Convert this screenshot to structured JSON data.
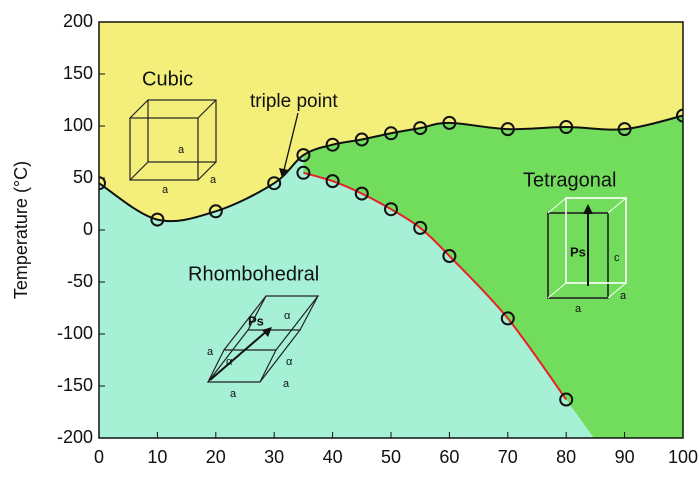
{
  "chart_data": {
    "type": "line",
    "y_label": "Temperature (°C)",
    "xlim": [
      0,
      100
    ],
    "ylim": [
      -200,
      200
    ],
    "xticks": [
      0,
      10,
      20,
      30,
      40,
      50,
      60,
      70,
      80,
      90,
      100
    ],
    "yticks": [
      -200,
      -150,
      -100,
      -50,
      0,
      50,
      100,
      150,
      200
    ],
    "series": [
      {
        "color": "#111111",
        "x": [
          0,
          10,
          20,
          30,
          35,
          40,
          45,
          50,
          55,
          60,
          70,
          80,
          90,
          100
        ],
        "values": [
          45,
          10,
          18,
          45,
          72,
          82,
          87,
          93,
          98,
          103,
          97,
          99,
          97,
          110
        ]
      },
      {
        "color": "#e8202a",
        "x": [
          35,
          40,
          45,
          50,
          55,
          60,
          70,
          80
        ],
        "values": [
          55,
          47,
          35,
          20,
          2,
          -25,
          -85,
          -163
        ]
      }
    ],
    "regions": [
      {
        "label": "Cubic",
        "color": "#f3ef7a"
      },
      {
        "label": "Rhombohedral",
        "color": "#a6f0d6"
      },
      {
        "label": "Tetragonal",
        "color": "#72dc5c"
      }
    ],
    "annotations": [
      "triple point"
    ],
    "crystal_labels": {
      "cubic": [
        "a",
        "a",
        "a"
      ],
      "tetragonal": [
        "Ps",
        "c",
        "a",
        "a"
      ],
      "rhombohedral": [
        "α",
        "α",
        "α",
        "Ps",
        "a",
        "a",
        "a"
      ]
    }
  }
}
